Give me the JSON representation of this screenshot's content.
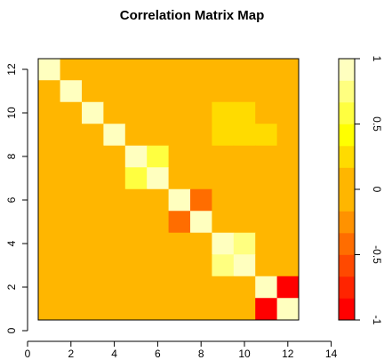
{
  "chart_data": {
    "type": "heatmap",
    "title": "Correlation Matrix Map",
    "xlabel": "",
    "ylabel": "",
    "xlim": [
      0,
      14
    ],
    "ylim": [
      0,
      12.5
    ],
    "x_ticks": [
      0,
      2,
      4,
      6,
      8,
      10,
      12,
      14
    ],
    "y_ticks": [
      0,
      2,
      4,
      6,
      8,
      10,
      12
    ],
    "cell_layout": "rows listed top (row 12) to bottom (row 1); columns 1..12 left to right",
    "values": [
      [
        1.0,
        0.12,
        0.1,
        0.1,
        0.08,
        0.15,
        0.05,
        0.12,
        0.08,
        0.08,
        0.14,
        0.08
      ],
      [
        0.12,
        1.0,
        0.1,
        0.1,
        0.15,
        0.15,
        0.15,
        0.15,
        0.08,
        0.08,
        0.14,
        0.08
      ],
      [
        0.1,
        0.1,
        1.0,
        -0.12,
        0.08,
        0.15,
        0.08,
        0.08,
        0.18,
        0.18,
        0.08,
        0.14
      ],
      [
        0.1,
        0.1,
        -0.12,
        1.0,
        0.15,
        0.15,
        0.15,
        0.08,
        0.18,
        0.18,
        0.18,
        0.08
      ],
      [
        0.08,
        0.15,
        0.08,
        0.15,
        0.9,
        0.5,
        0.15,
        0.08,
        0.08,
        0.08,
        0.08,
        0.14
      ],
      [
        0.15,
        0.15,
        0.15,
        0.15,
        0.5,
        0.9,
        0.15,
        0.08,
        0.08,
        0.08,
        0.14,
        0.08
      ],
      [
        0.08,
        0.15,
        0.08,
        0.15,
        0.15,
        0.15,
        1.0,
        -0.35,
        0.14,
        0.08,
        0.14,
        0.08
      ],
      [
        0.15,
        0.15,
        0.08,
        0.08,
        0.08,
        0.08,
        -0.35,
        1.0,
        0.08,
        0.14,
        0.08,
        0.14
      ],
      [
        0.08,
        0.08,
        0.15,
        0.15,
        0.08,
        0.08,
        0.14,
        0.08,
        0.9,
        0.75,
        0.14,
        0.08
      ],
      [
        0.08,
        0.08,
        0.15,
        0.15,
        0.08,
        0.08,
        0.08,
        0.14,
        0.75,
        0.9,
        0.14,
        0.08
      ],
      [
        0.15,
        0.15,
        0.08,
        0.15,
        0.08,
        0.15,
        0.15,
        0.08,
        0.14,
        0.14,
        1.0,
        -0.9
      ],
      [
        0.08,
        0.08,
        0.15,
        0.08,
        0.15,
        0.08,
        0.08,
        0.14,
        0.08,
        0.08,
        -0.9,
        1.0
      ]
    ],
    "colorbar": {
      "min": -1,
      "max": 1,
      "ticks": [
        -1,
        -0.5,
        0,
        0.5,
        1
      ],
      "tick_labels": [
        "-1",
        "-0.5",
        "0",
        "0.5",
        "1"
      ],
      "colors": [
        "#ff0000",
        "#ff2400",
        "#ff4900",
        "#ff6d00",
        "#ff9200",
        "#ffb600",
        "#ffb600",
        "#ffdb00",
        "#ffff00",
        "#ffff40",
        "#ffff80",
        "#ffffbf"
      ]
    }
  }
}
